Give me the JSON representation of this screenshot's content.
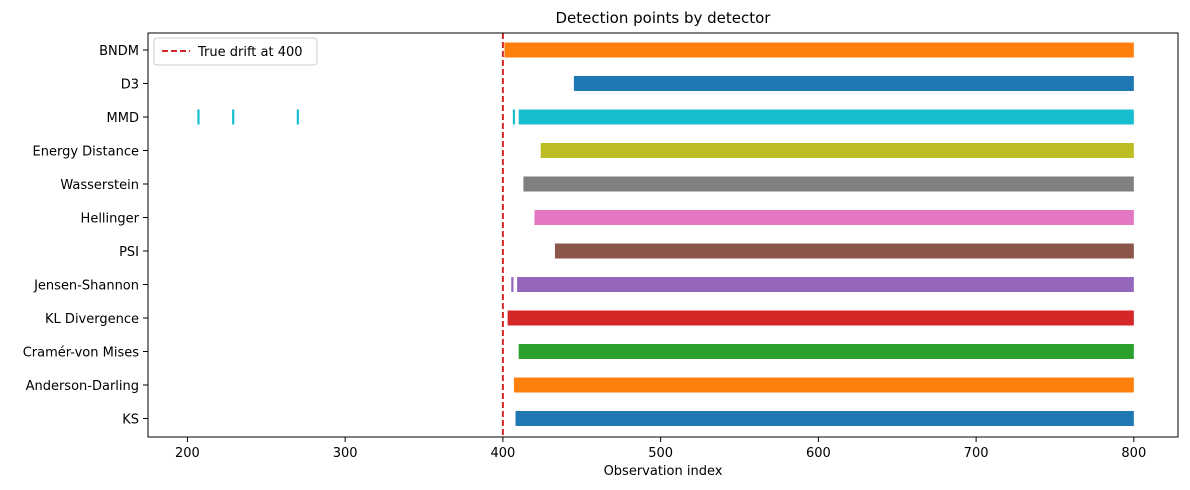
{
  "chart_data": {
    "type": "timeline",
    "title": "Detection points by detector",
    "xlabel": "Observation index",
    "ylabel": "",
    "xlim": [
      175,
      828
    ],
    "xticks": [
      200,
      300,
      400,
      500,
      600,
      700,
      800
    ],
    "grid": false,
    "legend": {
      "placement": "top-left",
      "entries": [
        {
          "label": "True drift at 400",
          "color": "#d62728",
          "style": "dashed"
        }
      ]
    },
    "reference_line": {
      "x": 400,
      "label": "True drift at 400",
      "color": "#d62728"
    },
    "categories": [
      "BNDM",
      "D3",
      "MMD",
      "Energy Distance",
      "Wasserstein",
      "Hellinger",
      "PSI",
      "Jensen-Shannon",
      "KL Divergence",
      "Cramér-von Mises",
      "Anderson-Darling",
      "KS"
    ],
    "series": [
      {
        "name": "BNDM",
        "color": "#ff7f0e",
        "ticks": [],
        "range": [
          401,
          800
        ]
      },
      {
        "name": "D3",
        "color": "#1f77b4",
        "ticks": [],
        "range": [
          445,
          800
        ]
      },
      {
        "name": "MMD",
        "color": "#17becf",
        "ticks": [
          207,
          229,
          270,
          407
        ],
        "range": [
          410,
          800
        ]
      },
      {
        "name": "Energy Distance",
        "color": "#bcbd22",
        "ticks": [],
        "range": [
          424,
          800
        ]
      },
      {
        "name": "Wasserstein",
        "color": "#7f7f7f",
        "ticks": [],
        "range": [
          413,
          800
        ]
      },
      {
        "name": "Hellinger",
        "color": "#e377c2",
        "ticks": [],
        "range": [
          420,
          800
        ]
      },
      {
        "name": "PSI",
        "color": "#8c564b",
        "ticks": [],
        "range": [
          433,
          800
        ]
      },
      {
        "name": "Jensen-Shannon",
        "color": "#9467bd",
        "ticks": [
          406
        ],
        "range": [
          409,
          800
        ]
      },
      {
        "name": "KL Divergence",
        "color": "#d62728",
        "ticks": [],
        "range": [
          403,
          800
        ]
      },
      {
        "name": "Cramér-von Mises",
        "color": "#2ca02c",
        "ticks": [],
        "range": [
          410,
          800
        ]
      },
      {
        "name": "Anderson-Darling",
        "color": "#ff7f0e",
        "ticks": [],
        "range": [
          407,
          800
        ]
      },
      {
        "name": "KS",
        "color": "#1f77b4",
        "ticks": [],
        "range": [
          408,
          800
        ]
      }
    ]
  }
}
